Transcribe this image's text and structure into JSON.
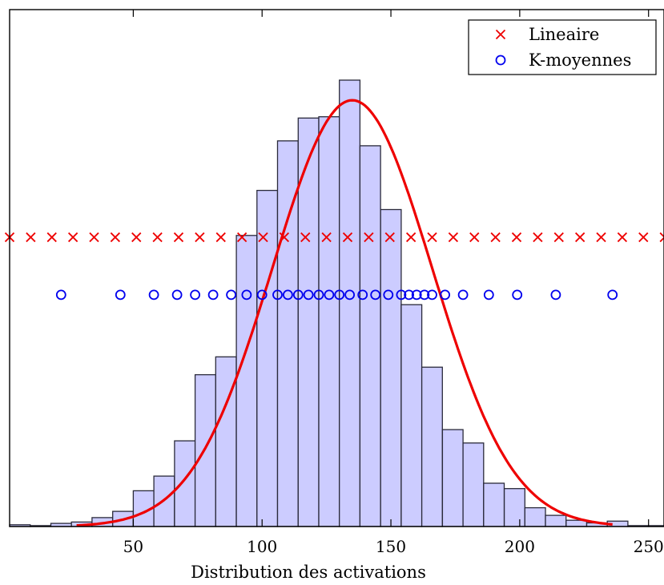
{
  "chart_data": {
    "type": "histogram",
    "xlabel": "Distribution des activations",
    "ylabel": "",
    "title": "",
    "xlim": [
      2,
      256
    ],
    "ylim": [
      0,
      1
    ],
    "xticks": [
      50,
      100,
      150,
      200,
      250
    ],
    "grid": false,
    "legend_position": "top-right",
    "colors": {
      "bars_fill": "#ccccff",
      "bars_edge": "#2a2a3a",
      "curve": "#ee0000",
      "lineaire": "#ee0000",
      "kmoyennes": "#0000ee",
      "axes": "#000000"
    },
    "histogram": {
      "bin_start": 2,
      "bin_width": 8,
      "heights": [
        0.004,
        0.002,
        0.007,
        0.01,
        0.02,
        0.034,
        0.08,
        0.113,
        0.192,
        0.34,
        0.38,
        0.652,
        0.753,
        0.864,
        0.915,
        0.918,
        1.0,
        0.853,
        0.71,
        0.497,
        0.357,
        0.217,
        0.187,
        0.097,
        0.085,
        0.042,
        0.025,
        0.014,
        0.008,
        0.012,
        0.002,
        0.002
      ]
    },
    "fit_curve": {
      "mean": 135,
      "sigma": 31,
      "peak": 0.955,
      "x_range": [
        28,
        236
      ]
    },
    "series": [
      {
        "name": "Lineaire",
        "marker": "x",
        "level": 0.648,
        "x": [
          2,
          10.2,
          18.4,
          26.6,
          34.8,
          43.0,
          51.2,
          59.4,
          67.6,
          75.8,
          84.0,
          92.2,
          100.4,
          108.6,
          116.8,
          125.0,
          133.2,
          141.4,
          149.6,
          157.8,
          166.0,
          174.2,
          182.4,
          190.6,
          198.8,
          207.0,
          215.2,
          223.4,
          231.6,
          239.8,
          248.0,
          256.2
        ]
      },
      {
        "name": "K-moyennes",
        "marker": "o",
        "level": 0.519,
        "x": [
          22,
          45,
          58,
          67,
          74,
          81,
          88,
          94,
          100,
          106,
          110,
          114,
          118,
          122,
          126,
          130,
          134,
          139,
          144,
          149,
          154,
          157,
          160,
          163,
          166,
          171,
          178,
          188,
          199,
          214,
          236
        ]
      }
    ]
  }
}
